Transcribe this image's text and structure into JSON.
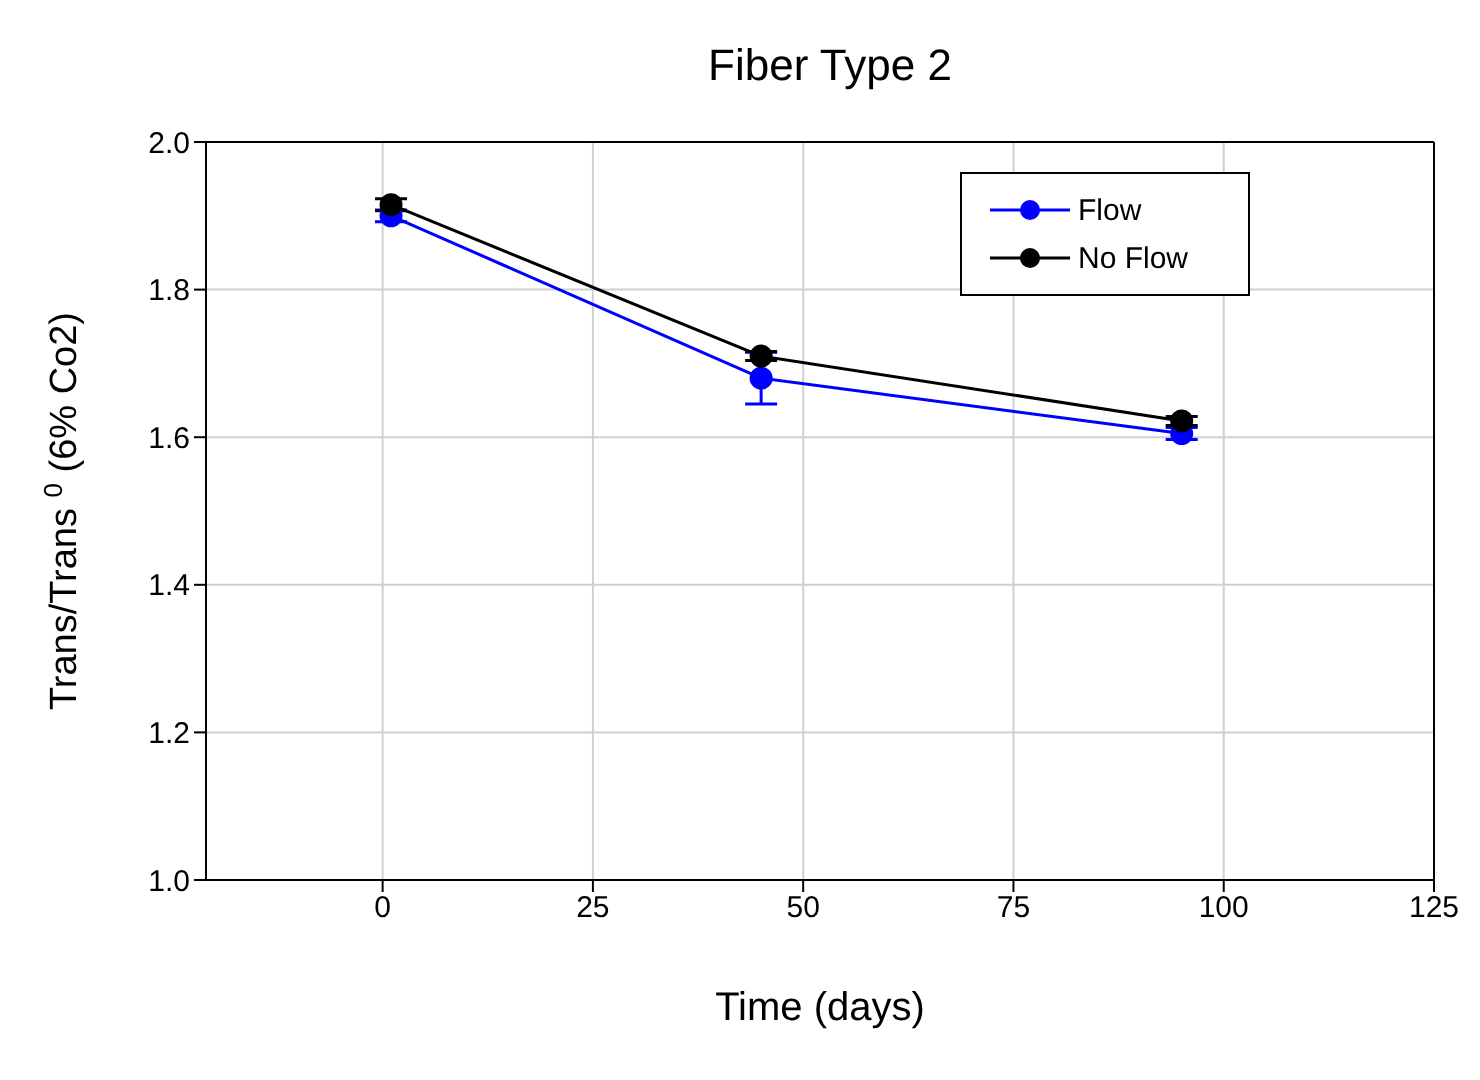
{
  "chart_data": {
    "type": "line",
    "title": "Fiber Type 2",
    "xlabel": "Time (days)",
    "ylabel": "Trans/Trans $^{0}$ (6% Co2)",
    "x": [
      1,
      45,
      95
    ],
    "series": [
      {
        "name": "Flow",
        "color": "#0000ff",
        "values": [
          1.9,
          1.68,
          1.605
        ],
        "errors": [
          0.008,
          0.035,
          0.008
        ]
      },
      {
        "name": "No Flow",
        "color": "#000000",
        "values": [
          1.915,
          1.71,
          1.622
        ],
        "errors": [
          0.008,
          0.006,
          0.006
        ]
      }
    ],
    "xlim": [
      -21,
      125
    ],
    "xticks": [
      0,
      25,
      50,
      75,
      100,
      125
    ],
    "ylim": [
      1.0,
      2.0
    ],
    "yticks": [
      {
        "value": 1.0,
        "label": "1.0"
      },
      1.2,
      1.4,
      1.6,
      1.8,
      {
        "value": 2.0,
        "label": "2.0"
      }
    ],
    "grid": true,
    "legend": "top right",
    "marker": "circle",
    "line_style": "solid"
  }
}
